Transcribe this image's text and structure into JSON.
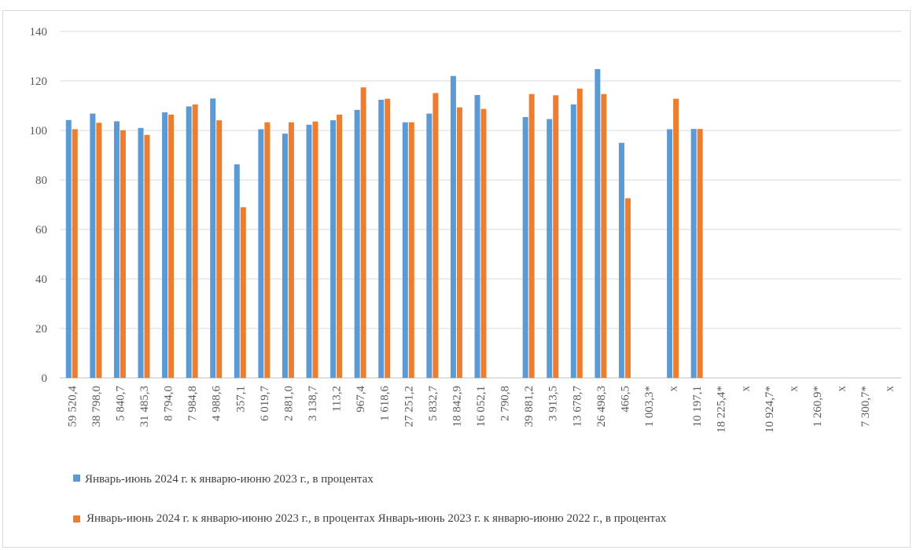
{
  "chart_data": {
    "type": "bar",
    "ylim": [
      0,
      140
    ],
    "yticks": [
      0,
      20,
      40,
      60,
      80,
      100,
      120,
      140
    ],
    "grid": true,
    "legend_position": "bottom",
    "categories": [
      "59 520,4",
      "38 798,0",
      "5 840,7",
      "31 485,3",
      "8 794,0",
      "7 984,8",
      "4 988,6",
      "357,1",
      "6 019,7",
      "2 881,0",
      "3 138,7",
      "113,2",
      "967,4",
      "1 618,6",
      "27 251,2",
      "5 832,7",
      "18 842,9",
      "16 052,1",
      "2 790,8",
      "39 881,2",
      "3 913,5",
      "13 678,7",
      "26 498,3",
      "466,5",
      "1 003,3*",
      "x",
      "10 197,1",
      "18 225,4*",
      "x",
      "10 924,7*",
      "x",
      "1 260,9*",
      "x",
      "7 300,7*",
      "x"
    ],
    "series": [
      {
        "name": "Январь-июнь  2024  г. к январю-июню  2023  г., в процентах",
        "color": "#5b9bd5",
        "values": [
          104.2,
          106.8,
          103.7,
          101.0,
          107.3,
          109.7,
          112.9,
          86.3,
          100.5,
          98.7,
          102.3,
          104.1,
          108.3,
          112.4,
          103.3,
          106.8,
          122.0,
          114.3,
          null,
          105.4,
          104.6,
          110.5,
          124.8,
          95.0,
          null,
          100.5,
          100.6,
          null,
          null,
          null,
          null,
          null,
          null,
          null,
          null
        ]
      },
      {
        "name": "Январь-июнь  2024  г. к январю-июню  2023  г., в процентах  Январь-июнь  2023  г. к январю-июню  2022  г., в процентах",
        "color": "#ed7d31",
        "values": [
          100.5,
          103.1,
          100.1,
          98.2,
          106.4,
          110.5,
          104.1,
          69.0,
          103.3,
          103.3,
          103.6,
          106.4,
          117.4,
          112.8,
          103.3,
          115.1,
          109.3,
          108.7,
          null,
          114.7,
          114.2,
          116.9,
          114.7,
          72.6,
          null,
          112.8,
          100.6,
          null,
          null,
          null,
          null,
          null,
          null,
          null,
          null
        ]
      }
    ]
  }
}
